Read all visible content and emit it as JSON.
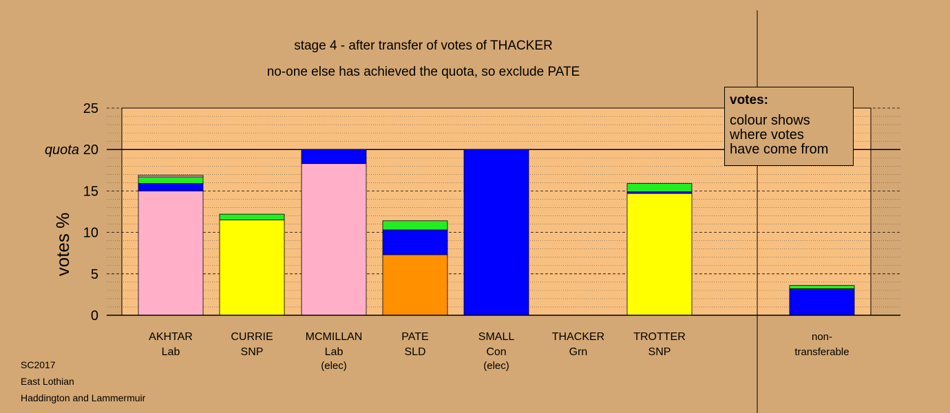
{
  "title_line1": "stage 4 - after transfer of votes of THACKER",
  "title_line2": "no-one else has achieved the quota, so exclude PATE",
  "ylabel": "votes %",
  "quota_label": "quota",
  "legend": {
    "title": "votes:",
    "lines": [
      "colour shows",
      "where votes",
      "have come from"
    ]
  },
  "footer": [
    "SC2017",
    "East Lothian",
    "Haddington and Lammermuir"
  ],
  "colors": {
    "background": "#d4a874",
    "plot_area": "#f8c080",
    "Lab": "#ffb0c8",
    "SNP": "#ffff00",
    "Con": "#0000ff",
    "SLD": "#ff9000",
    "Grn": "#22ee22"
  },
  "chart_data": {
    "type": "bar",
    "stacked": true,
    "ylim": [
      0,
      25
    ],
    "yticks": [
      0,
      5,
      10,
      15,
      20,
      25
    ],
    "quota": 20,
    "grid": "minor dotted every 1, major dashed every 5",
    "categories": [
      {
        "name": "AKHTAR",
        "party": "Lab",
        "note": ""
      },
      {
        "name": "CURRIE",
        "party": "SNP",
        "note": ""
      },
      {
        "name": "MCMILLAN",
        "party": "Lab",
        "note": "(elec)"
      },
      {
        "name": "PATE",
        "party": "SLD",
        "note": ""
      },
      {
        "name": "SMALL",
        "party": "Con",
        "note": "(elec)"
      },
      {
        "name": "THACKER",
        "party": "Grn",
        "note": ""
      },
      {
        "name": "TROTTER",
        "party": "SNP",
        "note": ""
      },
      {
        "name": "non-",
        "party": "transferable",
        "note": ""
      }
    ],
    "stacks": [
      [
        {
          "from": "Lab",
          "value": 15.0
        },
        {
          "from": "Con",
          "value": 0.9
        },
        {
          "from": "Grn",
          "value": 0.8
        },
        {
          "from": "Lab",
          "value": 0.2
        }
      ],
      [
        {
          "from": "SNP",
          "value": 11.5
        },
        {
          "from": "Grn",
          "value": 0.7
        }
      ],
      [
        {
          "from": "Lab",
          "value": 18.3
        },
        {
          "from": "Con",
          "value": 1.7
        }
      ],
      [
        {
          "from": "SLD",
          "value": 7.3
        },
        {
          "from": "Con",
          "value": 3.0
        },
        {
          "from": "Grn",
          "value": 1.1
        }
      ],
      [
        {
          "from": "Con",
          "value": 20.0
        }
      ],
      [],
      [
        {
          "from": "SNP",
          "value": 14.7
        },
        {
          "from": "Con",
          "value": 0.2
        },
        {
          "from": "Grn",
          "value": 1.0
        }
      ],
      [
        {
          "from": "Con",
          "value": 3.2
        },
        {
          "from": "Grn",
          "value": 0.4
        }
      ]
    ]
  }
}
